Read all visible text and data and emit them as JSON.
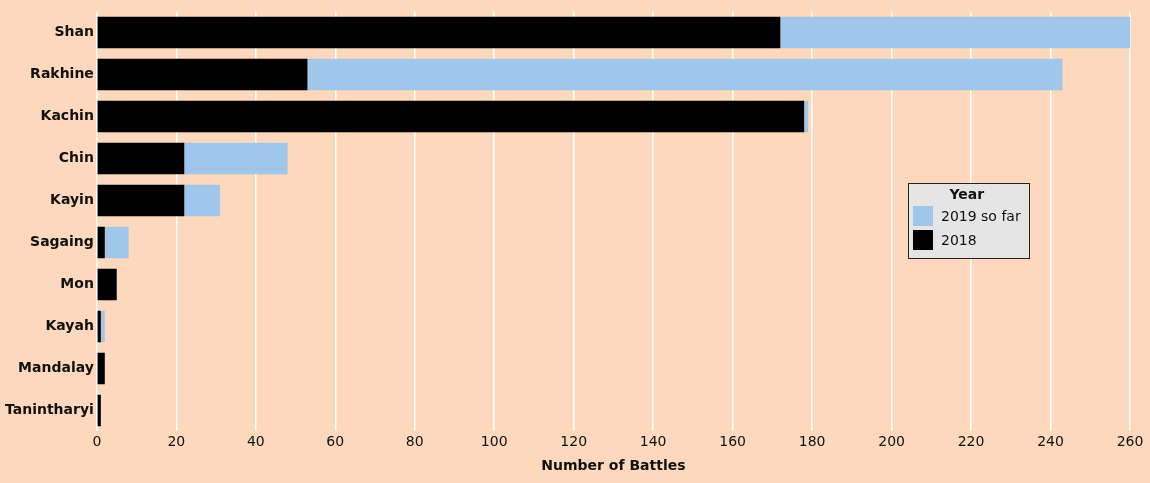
{
  "chart_data": {
    "type": "bar",
    "orientation": "horizontal",
    "stacked": true,
    "categories": [
      "Shan",
      "Rakhine",
      "Kachin",
      "Chin",
      "Kayin",
      "Sagaing",
      "Mon",
      "Kayah",
      "Mandalay",
      "Tanintharyi"
    ],
    "series": [
      {
        "name": "2018",
        "color": "#000000",
        "values": [
          172,
          53,
          178,
          22,
          22,
          2,
          5,
          1,
          2,
          1
        ]
      },
      {
        "name": "2019 so far",
        "color": "#a0c6ea",
        "values": [
          88,
          190,
          1,
          26,
          9,
          6,
          0,
          1,
          0,
          0
        ]
      }
    ],
    "xlabel": "Number of Battles",
    "legend_title": "Year",
    "legend": "right",
    "xlim": [
      0,
      260
    ],
    "xticks": [
      0,
      20,
      40,
      60,
      80,
      100,
      120,
      140,
      160,
      180,
      200,
      220,
      240,
      260
    ],
    "grid": "x"
  }
}
